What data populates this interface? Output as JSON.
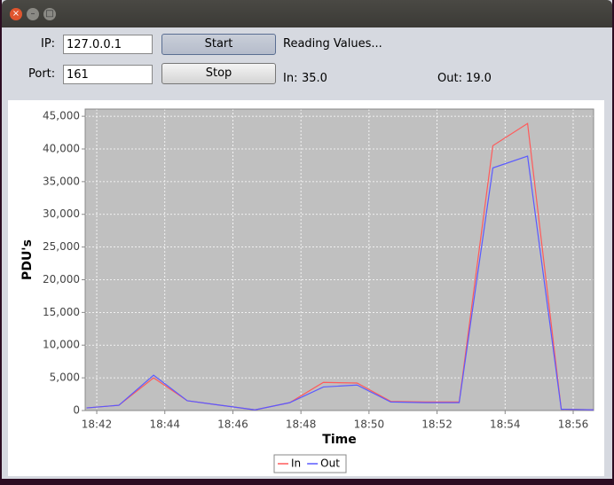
{
  "form": {
    "ip_label": "IP:",
    "ip_value": "127.0.0.1",
    "start": "Start",
    "status": "Reading Values...",
    "port_label": "Port:",
    "port_value": "161",
    "stop": "Stop",
    "in_label": "In:",
    "in_value": "35.0",
    "out_label": "Out:",
    "out_value": "19.0"
  },
  "chart_data": {
    "type": "line",
    "x_label": "Time",
    "y_label": "PDU's",
    "x": [
      1121.7,
      1122.65,
      1123.67,
      1124.66,
      1125.65,
      1126.65,
      1127.67,
      1128.66,
      1129.65,
      1130.64,
      1131.66,
      1132.65,
      1133.64,
      1134.66,
      1135.65,
      1136.6
    ],
    "series": [
      {
        "name": "In",
        "color": "#ff5a5a",
        "values": [
          400,
          800,
          5000,
          1500,
          800,
          100,
          1200,
          4300,
          4200,
          1400,
          1300,
          1300,
          40500,
          43900,
          200,
          100
        ]
      },
      {
        "name": "Out",
        "color": "#5a5aff",
        "values": [
          400,
          800,
          5400,
          1500,
          800,
          100,
          1200,
          3600,
          3900,
          1300,
          1200,
          1200,
          37100,
          38900,
          200,
          100
        ]
      }
    ],
    "xlim": [
      1121.66,
      1136.6
    ],
    "ylim": [
      0,
      46100
    ],
    "xticks": [
      {
        "value": 1122,
        "label": "18:42"
      },
      {
        "value": 1124,
        "label": "18:44"
      },
      {
        "value": 1126,
        "label": "18:46"
      },
      {
        "value": 1128,
        "label": "18:48"
      },
      {
        "value": 1130,
        "label": "18:50"
      },
      {
        "value": 1132,
        "label": "18:52"
      },
      {
        "value": 1134,
        "label": "18:54"
      },
      {
        "value": 1136,
        "label": "18:56"
      }
    ],
    "yticks": [
      0,
      {
        "value": 5000,
        "label": "5,000"
      },
      {
        "value": 10000,
        "label": "10,000"
      },
      {
        "value": 15000,
        "label": "15,000"
      },
      {
        "value": 20000,
        "label": "20,000"
      },
      {
        "value": 25000,
        "label": "25,000"
      },
      {
        "value": 30000,
        "label": "30,000"
      },
      {
        "value": 35000,
        "label": "35,000"
      },
      {
        "value": 40000,
        "label": "40,000"
      },
      {
        "value": 45000,
        "label": "45,000"
      }
    ],
    "grid": true,
    "legend": "bottom",
    "plot_background": "#c0c0c0"
  }
}
